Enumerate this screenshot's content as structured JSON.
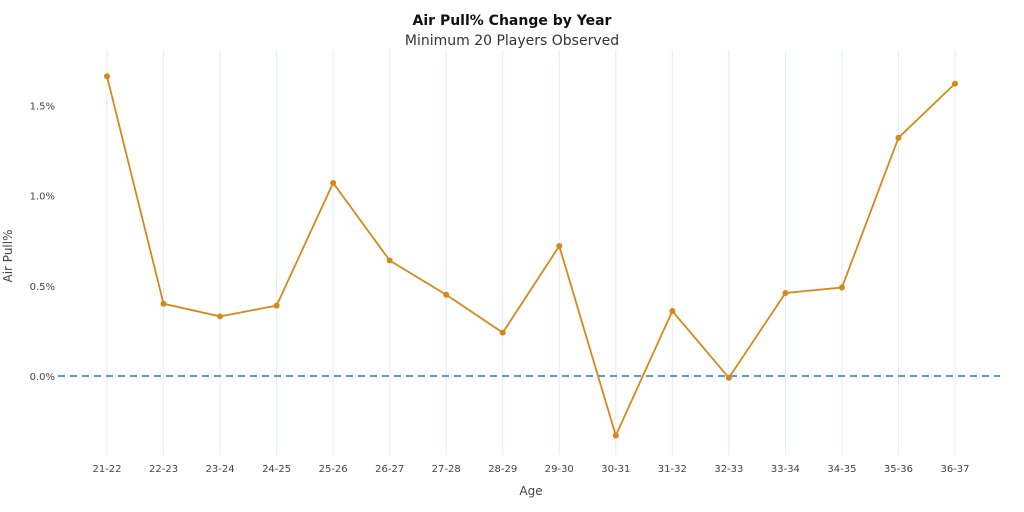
{
  "chart_data": {
    "type": "line",
    "title": "Air Pull% Change by Year",
    "subtitle": "Minimum 20 Players Observed",
    "xlabel": "Age",
    "ylabel": "Air Pull%",
    "categories": [
      "21-22",
      "22-23",
      "23-24",
      "24-25",
      "25-26",
      "26-27",
      "27-28",
      "28-29",
      "29-30",
      "30-31",
      "31-32",
      "32-33",
      "33-34",
      "34-35",
      "35-36",
      "36-37"
    ],
    "series": [
      {
        "name": "Air Pull% Change",
        "values": [
          1.66,
          0.4,
          0.33,
          0.39,
          1.07,
          0.64,
          0.45,
          0.24,
          0.72,
          -0.33,
          0.36,
          -0.01,
          0.46,
          0.49,
          1.32,
          1.62
        ],
        "color": "#d4891a"
      }
    ],
    "yticks": [
      0.0,
      0.5,
      1.0,
      1.5
    ],
    "ytick_labels": [
      "0.0%",
      "0.5%",
      "1.0%",
      "1.5%"
    ],
    "ylim": [
      -0.45,
      1.9
    ],
    "reference_line": {
      "y": 0.0,
      "color": "#5b9bd5",
      "style": "dashed"
    },
    "grid": "vertical"
  }
}
